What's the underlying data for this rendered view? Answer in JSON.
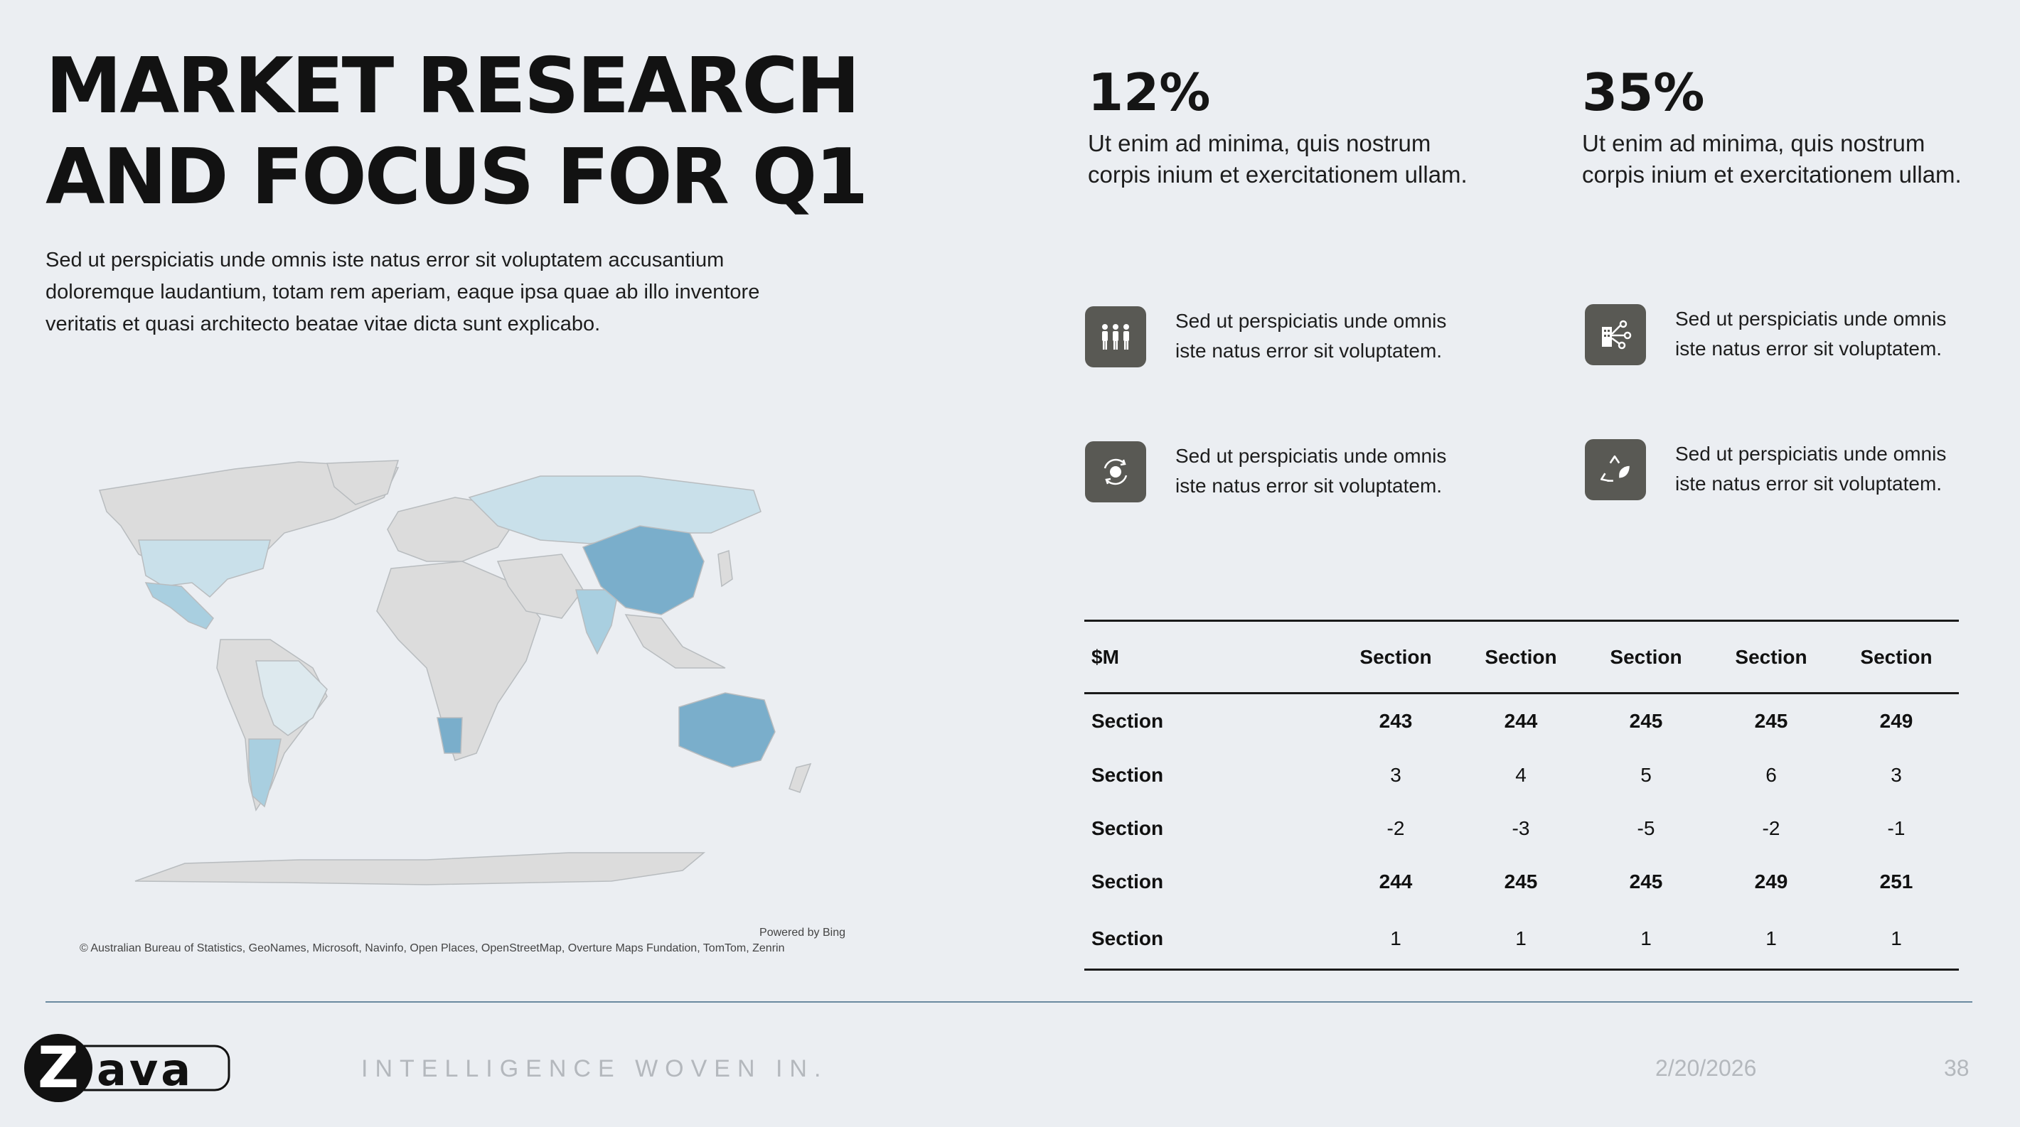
{
  "slide": {
    "title_line1": "MARKET RESEARCH",
    "title_line2": "AND FOCUS FOR Q1",
    "intro": "Sed ut perspiciatis unde omnis iste natus error sit voluptatem accusantium doloremque laudantium, totam rem aperiam, eaque ipsa quae ab illo inventore veritatis et quasi architecto beatae vitae dicta sunt explicabo."
  },
  "stats": [
    {
      "value": "12%",
      "description": "Ut enim ad minima, quis nostrum corpis inium et exercitationem ullam."
    },
    {
      "value": "35%",
      "description": "Ut enim ad minima, quis nostrum corpis inium et exercitationem ullam."
    }
  ],
  "features": [
    {
      "icon": "people-group-icon",
      "text": "Sed ut perspiciatis unde omnis iste natus error sit voluptatem."
    },
    {
      "icon": "building-network-icon",
      "text": "Sed ut perspiciatis unde omnis iste natus error sit voluptatem."
    },
    {
      "icon": "globe-refresh-icon",
      "text": "Sed ut perspiciatis unde omnis iste natus error sit voluptatem."
    },
    {
      "icon": "recycle-leaf-icon",
      "text": "Sed ut perspiciatis unde omnis iste natus error sit voluptatem."
    }
  ],
  "map": {
    "powered_by": "Powered by Bing",
    "attribution": "© Australian Bureau of Statistics, GeoNames, Microsoft, Navinfo, Open Places, OpenStreetMap, Overture Maps Fundation, TomTom, Zenrin",
    "colors": {
      "land": "#dcdcdc",
      "light": "#c9e0ea",
      "medium": "#a9cfe0",
      "dark": "#7aaecb"
    }
  },
  "table": {
    "header": [
      "$M",
      "Section",
      "Section",
      "Section",
      "Section",
      "Section"
    ],
    "rows": [
      {
        "label": "Section",
        "values": [
          "243",
          "244",
          "245",
          "245",
          "249"
        ],
        "bold": true
      },
      {
        "label": "Section",
        "values": [
          "3",
          "4",
          "5",
          "6",
          "3"
        ],
        "bold": false
      },
      {
        "label": "Section",
        "values": [
          "-2",
          "-3",
          "-5",
          "-2",
          "-1"
        ],
        "bold": false
      },
      {
        "label": "Section",
        "values": [
          "244",
          "245",
          "245",
          "249",
          "251"
        ],
        "bold": true
      },
      {
        "label": "Section",
        "values": [
          "1",
          "1",
          "1",
          "1",
          "1"
        ],
        "bold": false
      }
    ]
  },
  "footer": {
    "brand": "Zava",
    "tagline": "INTELLIGENCE WOVEN IN.",
    "date": "2/20/2026",
    "page": "38"
  }
}
